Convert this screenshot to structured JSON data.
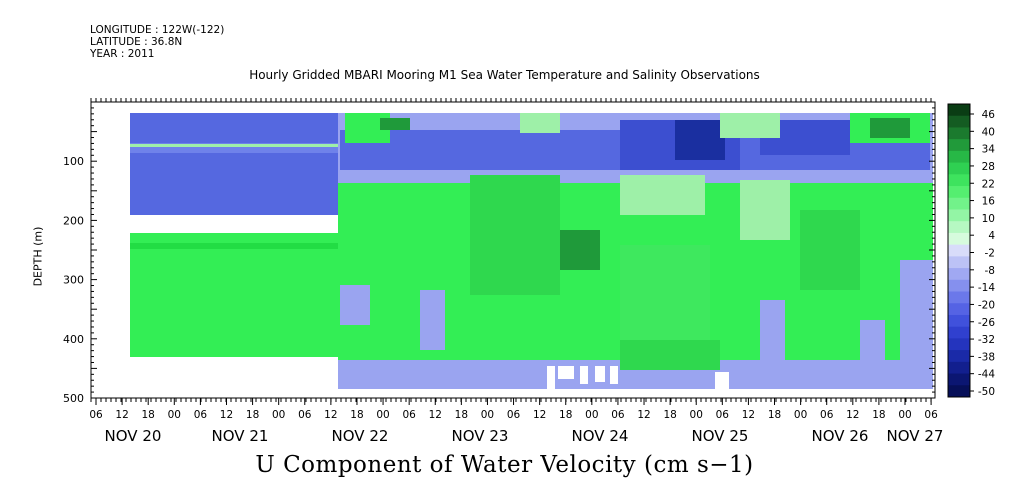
{
  "header": {
    "longitude": "LONGITUDE : 122W(-122)",
    "latitude": "LATITUDE : 36.8N",
    "year": "YEAR : 2011"
  },
  "chart_data": {
    "type": "heatmap",
    "title": "Hourly Gridded MBARI Mooring M1 Sea Water Temperature and Salinity Observations",
    "xlabel": "U Component of Water Velocity (cm s−1)",
    "ylabel": "DEPTH (m)",
    "ylim": [
      500,
      0
    ],
    "yticks": [
      100,
      200,
      300,
      400,
      500
    ],
    "hour_ticks": [
      "06",
      "12",
      "18",
      "00",
      "06",
      "12",
      "18",
      "00",
      "06",
      "12",
      "18",
      "00",
      "06",
      "12",
      "18",
      "00",
      "06",
      "12",
      "18",
      "00",
      "06",
      "12",
      "18",
      "00",
      "06",
      "12",
      "18",
      "00",
      "06",
      "12",
      "18",
      "00",
      "06"
    ],
    "day_labels": [
      "NOV 20",
      "NOV 21",
      "NOV 22",
      "NOV 23",
      "NOV 24",
      "NOV 25",
      "NOV 26",
      "NOV 27"
    ],
    "colorbar": {
      "tick_labels": [
        "46",
        "40",
        "34",
        "28",
        "22",
        "16",
        "10",
        "4",
        "-2",
        "-8",
        "-14",
        "-20",
        "-26",
        "-32",
        "-38",
        "-44",
        "-50"
      ],
      "min": -50,
      "max": 49
    },
    "colors": {
      "deep_blue": "#1a2fa0",
      "blue": "#5568e0",
      "light_blue": "#9aa4f0",
      "light_green": "#9ef0a8",
      "green": "#33ee55",
      "dark_green": "#1f9a3a"
    }
  }
}
